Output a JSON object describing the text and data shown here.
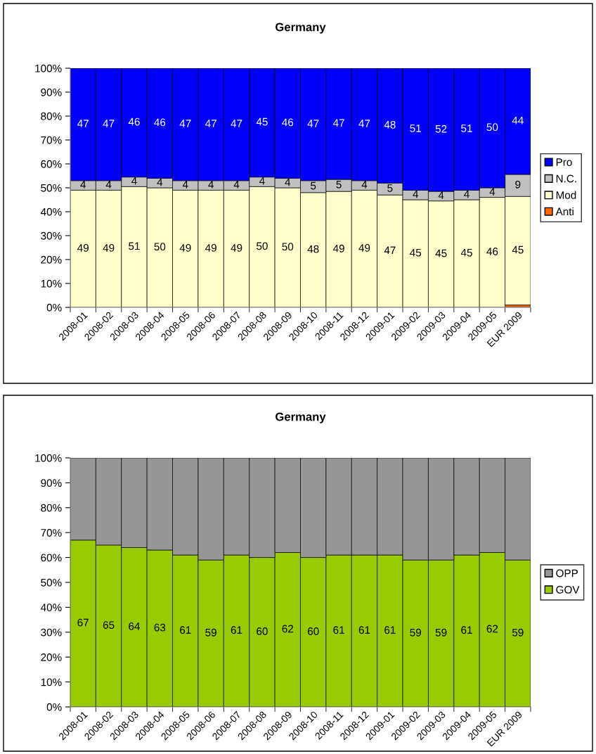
{
  "chart_data": [
    {
      "type": "bar",
      "title": "Germany",
      "stacked": true,
      "legend": "right",
      "grid": false,
      "categories": [
        "2008-01",
        "2008-02",
        "2008-03",
        "2008-04",
        "2008-05",
        "2008-06",
        "2008-07",
        "2008-08",
        "2008-09",
        "2008-10",
        "2008-11",
        "2008-12",
        "2009-01",
        "2009-02",
        "2009-03",
        "2009-04",
        "2009-05",
        "EUR 2009"
      ],
      "ylim": [
        0,
        100
      ],
      "yticks": [
        {
          "value": 0,
          "label": "0%"
        },
        {
          "value": 10,
          "label": "10%"
        },
        {
          "value": 20,
          "label": "20%"
        },
        {
          "value": 30,
          "label": "30%"
        },
        {
          "value": 40,
          "label": "40%"
        },
        {
          "value": 50,
          "label": "50%"
        },
        {
          "value": 60,
          "label": "60%"
        },
        {
          "value": 70,
          "label": "70%"
        },
        {
          "value": 80,
          "label": "80%"
        },
        {
          "value": 90,
          "label": "90%"
        },
        {
          "value": 100,
          "label": "100%"
        }
      ],
      "series": [
        {
          "name": "Anti",
          "color": "#ff6600",
          "values": [
            0,
            0,
            0,
            0,
            0,
            0,
            0,
            0,
            0,
            0,
            0,
            0,
            0,
            0,
            0,
            0,
            0,
            1
          ],
          "value_labels": [
            null,
            null,
            null,
            null,
            null,
            null,
            null,
            null,
            null,
            null,
            null,
            null,
            null,
            null,
            null,
            null,
            null,
            null
          ]
        },
        {
          "name": "Mod",
          "color": "#ffffcc",
          "values": [
            49,
            49,
            50.5,
            50,
            49,
            49,
            49,
            50.5,
            50,
            48,
            48.5,
            49,
            47,
            45,
            44.5,
            45,
            46,
            45.4
          ],
          "value_labels": [
            "49",
            "49",
            "51",
            "50",
            "49",
            "49",
            "49",
            "50",
            "50",
            "48",
            "49",
            "49",
            "47",
            "45",
            "45",
            "45",
            "46",
            "45"
          ]
        },
        {
          "name": "N.C.",
          "color": "#c0c0c0",
          "values": [
            4,
            4,
            4,
            4,
            4,
            4,
            4,
            4,
            4,
            5,
            5,
            4,
            5,
            4,
            4,
            4,
            4,
            9.2
          ],
          "value_labels": [
            "4",
            "4",
            "4",
            "4",
            "4",
            "4",
            "4",
            "4",
            "4",
            "5",
            "5",
            "4",
            "5",
            "4",
            "4",
            "4",
            "4",
            "9"
          ]
        },
        {
          "name": "Pro",
          "color": "#0000ff",
          "values": [
            47,
            47,
            45.5,
            46,
            47,
            47,
            47,
            45.5,
            46,
            47,
            46.5,
            47,
            48,
            51,
            51.5,
            51,
            50,
            44.4
          ],
          "value_labels": [
            "47",
            "47",
            "46",
            "46",
            "47",
            "47",
            "47",
            "45",
            "46",
            "47",
            "47",
            "47",
            "48",
            "51",
            "52",
            "51",
            "50",
            "44"
          ]
        }
      ]
    },
    {
      "type": "bar",
      "title": "Germany",
      "stacked": true,
      "legend": "right",
      "grid": false,
      "categories": [
        "2008-01",
        "2008-02",
        "2008-03",
        "2008-04",
        "2008-05",
        "2008-06",
        "2008-07",
        "2008-08",
        "2008-09",
        "2008-10",
        "2008-11",
        "2008-12",
        "2009-01",
        "2009-02",
        "2009-03",
        "2009-04",
        "2009-05",
        "EUR 2009"
      ],
      "ylim": [
        0,
        100
      ],
      "yticks": [
        {
          "value": 0,
          "label": "0%"
        },
        {
          "value": 10,
          "label": "10%"
        },
        {
          "value": 20,
          "label": "20%"
        },
        {
          "value": 30,
          "label": "30%"
        },
        {
          "value": 40,
          "label": "40%"
        },
        {
          "value": 50,
          "label": "50%"
        },
        {
          "value": 60,
          "label": "60%"
        },
        {
          "value": 70,
          "label": "70%"
        },
        {
          "value": 80,
          "label": "80%"
        },
        {
          "value": 90,
          "label": "90%"
        },
        {
          "value": 100,
          "label": "100%"
        }
      ],
      "series": [
        {
          "name": "GOV",
          "color": "#99cc00",
          "values": [
            67,
            65,
            64,
            63,
            61,
            59,
            61,
            60,
            62,
            60,
            61,
            61,
            61,
            59,
            59,
            61,
            62,
            59
          ],
          "value_labels": [
            "67",
            "65",
            "64",
            "63",
            "61",
            "59",
            "61",
            "60",
            "62",
            "60",
            "61",
            "61",
            "61",
            "59",
            "59",
            "61",
            "62",
            "59"
          ]
        },
        {
          "name": "OPP",
          "color": "#969696",
          "values": [
            33,
            35,
            36,
            37,
            39,
            41,
            39,
            40,
            38,
            40,
            39,
            39,
            39,
            41,
            41,
            39,
            38,
            41
          ],
          "value_labels": [
            null,
            null,
            null,
            null,
            null,
            null,
            null,
            null,
            null,
            null,
            null,
            null,
            null,
            null,
            null,
            null,
            null,
            null
          ]
        }
      ]
    }
  ]
}
